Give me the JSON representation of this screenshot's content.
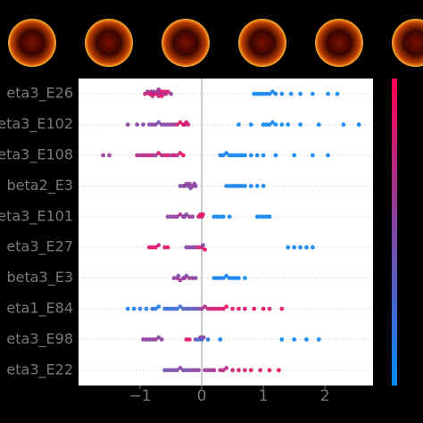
{
  "chart_data": {
    "type": "beeswarm",
    "xlim": [
      -2.0,
      2.78
    ],
    "xticks": [
      {
        "value": -1,
        "label": "−1"
      },
      0,
      1,
      2
    ],
    "colormap": [
      "#008bfb",
      "#ff0052"
    ],
    "series": [
      {
        "name": "eta3_E26",
        "values": [
          -0.92,
          -0.88,
          -0.85,
          -0.82,
          -0.8,
          -0.78,
          -0.75,
          -0.72,
          -0.7,
          -0.68,
          -0.65,
          -0.62,
          -0.6,
          -0.58,
          -0.55,
          -0.5,
          -0.8,
          -0.7,
          -0.65,
          0.85,
          0.9,
          0.95,
          1.0,
          1.05,
          1.1,
          1.15,
          1.2,
          1.3,
          1.45,
          1.6,
          1.8,
          2.05,
          2.2
        ],
        "feature_values": [
          0.8,
          0.6,
          0.9,
          0.7,
          0.85,
          0.5,
          0.9,
          0.6,
          0.8,
          0.7,
          0.9,
          0.6,
          0.85,
          0.7,
          0.8,
          0.6,
          0.75,
          0.65,
          0.9,
          0.05,
          0.05,
          0.08,
          0.05,
          0.1,
          0.05,
          0.05,
          0.08,
          0.05,
          0.05,
          0.05,
          0.05,
          0.05,
          0.05
        ]
      },
      {
        "name": "eta3_E102",
        "values": [
          -1.2,
          -1.05,
          -0.95,
          -0.85,
          -0.8,
          -0.75,
          -0.7,
          -0.65,
          -0.6,
          -0.55,
          -0.5,
          -0.45,
          -0.4,
          -0.35,
          -0.3,
          -0.28,
          -0.25,
          -0.22,
          0.6,
          0.8,
          1.0,
          1.05,
          1.1,
          1.15,
          1.2,
          1.3,
          1.4,
          1.6,
          1.9,
          2.3,
          2.55
        ],
        "feature_values": [
          0.55,
          0.55,
          0.5,
          0.5,
          0.55,
          0.5,
          0.45,
          0.5,
          0.55,
          0.5,
          0.6,
          0.55,
          0.8,
          0.85,
          0.9,
          0.8,
          0.85,
          0.8,
          0.05,
          0.05,
          0.05,
          0.05,
          0.08,
          0.05,
          0.05,
          0.05,
          0.05,
          0.05,
          0.05,
          0.05,
          0.05
        ]
      },
      {
        "name": "eta3_E108",
        "values": [
          -1.6,
          -1.5,
          -1.05,
          -1.0,
          -0.95,
          -0.9,
          -0.85,
          -0.8,
          -0.75,
          -0.7,
          -0.65,
          -0.6,
          -0.55,
          -0.5,
          -0.45,
          -0.4,
          -0.35,
          -0.3,
          0.3,
          0.35,
          0.4,
          0.45,
          0.5,
          0.55,
          0.6,
          0.65,
          0.7,
          0.8,
          0.9,
          1.0,
          1.2,
          1.5,
          1.8,
          2.05
        ],
        "feature_values": [
          0.6,
          0.6,
          0.7,
          0.6,
          0.75,
          0.65,
          0.8,
          0.7,
          0.6,
          0.85,
          0.7,
          0.75,
          0.9,
          0.6,
          0.8,
          0.7,
          0.85,
          0.9,
          0.1,
          0.05,
          0.08,
          0.05,
          0.1,
          0.05,
          0.05,
          0.08,
          0.05,
          0.05,
          0.05,
          0.05,
          0.05,
          0.05,
          0.05,
          0.05
        ]
      },
      {
        "name": "beta2_E3",
        "values": [
          -0.35,
          -0.3,
          -0.28,
          -0.25,
          -0.22,
          -0.2,
          -0.18,
          -0.15,
          -0.12,
          -0.1,
          0.4,
          0.45,
          0.5,
          0.55,
          0.6,
          0.65,
          0.7,
          0.8,
          0.9,
          1.0
        ],
        "feature_values": [
          0.5,
          0.55,
          0.5,
          0.6,
          0.5,
          0.55,
          0.5,
          0.6,
          0.5,
          0.55,
          0.1,
          0.05,
          0.08,
          0.05,
          0.1,
          0.05,
          0.05,
          0.05,
          0.05,
          0.05
        ]
      },
      {
        "name": "eta3_E101",
        "values": [
          -0.55,
          -0.5,
          -0.45,
          -0.4,
          -0.35,
          -0.3,
          -0.28,
          -0.25,
          -0.2,
          -0.15,
          -0.05,
          -0.02,
          0.0,
          0.02,
          0.2,
          0.25,
          0.3,
          0.35,
          0.45,
          0.9,
          0.95,
          1.0,
          1.05,
          1.1
        ],
        "feature_values": [
          0.55,
          0.5,
          0.6,
          0.55,
          0.65,
          0.6,
          0.55,
          0.5,
          0.6,
          0.55,
          0.85,
          0.9,
          0.8,
          0.9,
          0.05,
          0.05,
          0.05,
          0.05,
          0.05,
          0.05,
          0.05,
          0.05,
          0.05,
          0.05
        ]
      },
      {
        "name": "eta3_E27",
        "values": [
          -0.85,
          -0.8,
          -0.75,
          -0.7,
          -0.6,
          -0.55,
          -0.25,
          -0.2,
          -0.15,
          -0.1,
          -0.05,
          0.0,
          0.02,
          0.05,
          1.4,
          1.5,
          1.6,
          1.7,
          1.8
        ],
        "feature_values": [
          0.9,
          0.85,
          0.9,
          0.8,
          0.85,
          0.9,
          0.5,
          0.55,
          0.5,
          0.6,
          0.8,
          0.85,
          0.5,
          0.9,
          0.05,
          0.05,
          0.05,
          0.05,
          0.05
        ]
      },
      {
        "name": "beta3_E3",
        "values": [
          -0.45,
          -0.4,
          -0.38,
          -0.35,
          -0.3,
          -0.28,
          -0.25,
          -0.2,
          -0.15,
          -0.1,
          0.2,
          0.25,
          0.3,
          0.35,
          0.4,
          0.45,
          0.5,
          0.55,
          0.6,
          0.7
        ],
        "feature_values": [
          0.55,
          0.6,
          0.5,
          0.65,
          0.55,
          0.6,
          0.5,
          0.6,
          0.55,
          0.5,
          0.05,
          0.08,
          0.05,
          0.1,
          0.05,
          0.05,
          0.08,
          0.05,
          0.05,
          0.05
        ]
      },
      {
        "name": "eta1_E84",
        "values": [
          -1.2,
          -1.1,
          -1.0,
          -0.9,
          -0.8,
          -0.75,
          -0.7,
          -0.6,
          -0.55,
          -0.5,
          -0.45,
          -0.4,
          -0.35,
          -0.3,
          -0.25,
          -0.2,
          -0.15,
          -0.1,
          -0.05,
          0.0,
          0.05,
          0.1,
          0.15,
          0.2,
          0.25,
          0.3,
          0.35,
          0.4,
          0.5,
          0.6,
          0.7,
          0.85,
          1.0,
          1.1,
          1.3
        ],
        "feature_values": [
          0.1,
          0.1,
          0.15,
          0.1,
          0.2,
          0.15,
          0.1,
          0.2,
          0.25,
          0.15,
          0.3,
          0.2,
          0.25,
          0.3,
          0.35,
          0.3,
          0.4,
          0.35,
          0.5,
          0.6,
          0.7,
          0.75,
          0.8,
          0.85,
          0.8,
          0.9,
          0.85,
          0.9,
          0.85,
          0.9,
          0.85,
          0.9,
          0.9,
          0.85,
          0.9
        ]
      },
      {
        "name": "eta3_E98",
        "values": [
          -0.95,
          -0.9,
          -0.85,
          -0.8,
          -0.75,
          -0.7,
          -0.65,
          -0.25,
          -0.2,
          -0.1,
          -0.05,
          -0.02,
          0.0,
          0.03,
          0.1,
          0.3,
          1.3,
          1.5,
          1.7,
          1.9
        ],
        "feature_values": [
          0.55,
          0.6,
          0.5,
          0.55,
          0.6,
          0.5,
          0.55,
          0.85,
          0.9,
          0.4,
          0.2,
          0.6,
          0.3,
          0.5,
          0.2,
          0.05,
          0.05,
          0.05,
          0.05,
          0.05
        ]
      },
      {
        "name": "eta3_E22",
        "values": [
          -0.6,
          -0.55,
          -0.5,
          -0.45,
          -0.4,
          -0.35,
          -0.3,
          -0.25,
          -0.2,
          -0.15,
          -0.1,
          -0.05,
          0.05,
          0.1,
          0.15,
          0.2,
          0.3,
          0.35,
          0.4,
          0.5,
          0.6,
          0.7,
          0.8,
          0.95,
          1.1,
          1.25
        ],
        "feature_values": [
          0.4,
          0.45,
          0.5,
          0.45,
          0.5,
          0.55,
          0.5,
          0.45,
          0.5,
          0.55,
          0.5,
          0.55,
          0.6,
          0.55,
          0.6,
          0.65,
          0.7,
          0.75,
          0.7,
          0.8,
          0.85,
          0.8,
          0.9,
          0.85,
          0.9,
          0.95
        ]
      }
    ]
  }
}
